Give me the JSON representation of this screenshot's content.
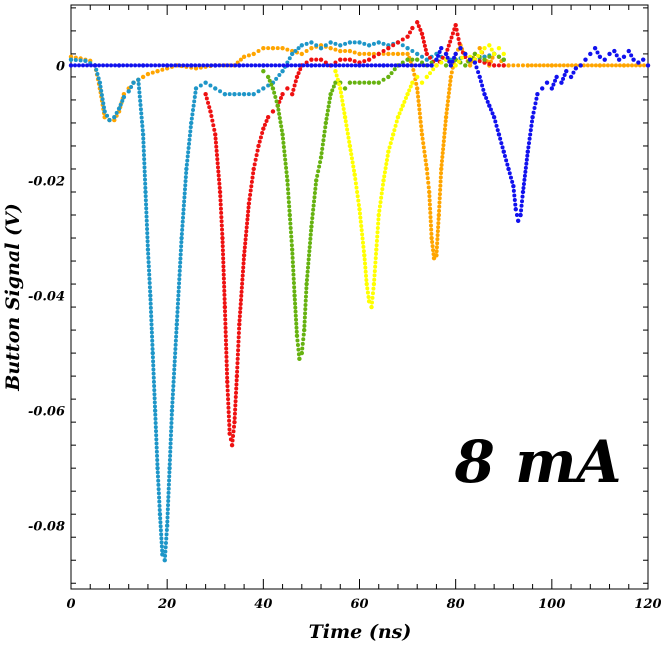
{
  "chart_data": {
    "type": "scatter",
    "xlabel": "Time (ns)",
    "ylabel": "Button Signal (V)",
    "annotation": "8 mA",
    "xlim": [
      0,
      120
    ],
    "ylim": [
      -0.091,
      0.0105
    ],
    "x_ticks": [
      0,
      20,
      40,
      60,
      80,
      100,
      120
    ],
    "x_tick_labels": [
      "0",
      "20",
      "40",
      "60",
      "80",
      "100",
      "120"
    ],
    "y_ticks": [
      0,
      -0.02,
      -0.04,
      -0.06,
      -0.08
    ],
    "y_tick_labels": [
      "0",
      "-0.02",
      "-0.04",
      "-0.06",
      "-0.08"
    ],
    "grid": false,
    "series": [
      {
        "color": "#ffa500",
        "points": [
          [
            0,
            0.0015
          ],
          [
            2,
            0.0012
          ],
          [
            4,
            0.0008
          ],
          [
            5,
            0
          ],
          [
            6,
            -0.004
          ],
          [
            7,
            -0.009
          ],
          [
            8,
            -0.0095
          ],
          [
            9,
            -0.0095
          ],
          [
            10,
            -0.008
          ],
          [
            11,
            -0.005
          ],
          [
            12,
            -0.004
          ],
          [
            13,
            -0.003
          ],
          [
            14,
            -0.0025
          ],
          [
            15,
            -0.002
          ],
          [
            16,
            -0.0015
          ],
          [
            18,
            -0.001
          ],
          [
            20,
            -0.0005
          ],
          [
            22,
            0
          ],
          [
            26,
            -0.0005
          ],
          [
            30,
            0
          ],
          [
            34,
            0
          ],
          [
            36,
            0.0015
          ],
          [
            38,
            0.002
          ],
          [
            40,
            0.003
          ],
          [
            42,
            0.003
          ],
          [
            44,
            0.003
          ],
          [
            46,
            0.0025
          ],
          [
            48,
            0.002
          ],
          [
            50,
            0.003
          ],
          [
            52,
            0.0035
          ],
          [
            54,
            0.003
          ],
          [
            56,
            0.0025
          ],
          [
            58,
            0.0025
          ],
          [
            60,
            0.002
          ],
          [
            62,
            0.002
          ],
          [
            64,
            0.002
          ],
          [
            66,
            0.002
          ],
          [
            68,
            0.002
          ],
          [
            70,
            0.002
          ],
          [
            71,
            0
          ],
          [
            72,
            -0.004
          ],
          [
            73,
            -0.012
          ],
          [
            74,
            -0.018
          ],
          [
            74.5,
            -0.022
          ],
          [
            75,
            -0.03
          ],
          [
            75.5,
            -0.0335
          ],
          [
            76,
            -0.033
          ],
          [
            76.5,
            -0.026
          ],
          [
            77,
            -0.018
          ],
          [
            78,
            -0.009
          ],
          [
            79,
            -0.002
          ],
          [
            80,
            0.002
          ],
          [
            81,
            0.0035
          ],
          [
            82,
            0.0015
          ],
          [
            83,
            0
          ],
          [
            84,
            0.002
          ],
          [
            85,
            0.003
          ],
          [
            86,
            0.0015
          ],
          [
            87,
            0
          ],
          [
            88,
            0.002
          ],
          [
            89,
            0.0015
          ],
          [
            90,
            0
          ],
          [
            91,
            0
          ],
          [
            95,
            0
          ],
          [
            100,
            0
          ],
          [
            105,
            0
          ],
          [
            110,
            0
          ],
          [
            115,
            0
          ],
          [
            120,
            0
          ]
        ]
      },
      {
        "color": "#1e96c8",
        "points": [
          [
            0,
            0.001
          ],
          [
            3,
            0.0008
          ],
          [
            5,
            0
          ],
          [
            6,
            -0.003
          ],
          [
            7,
            -0.008
          ],
          [
            8,
            -0.0095
          ],
          [
            9,
            -0.009
          ],
          [
            10,
            -0.0075
          ],
          [
            11,
            -0.0055
          ],
          [
            12,
            -0.0045
          ],
          [
            13,
            -0.003
          ],
          [
            14,
            -0.0025
          ],
          [
            15,
            -0.012
          ],
          [
            15.5,
            -0.022
          ],
          [
            16,
            -0.032
          ],
          [
            16.5,
            -0.04
          ],
          [
            17,
            -0.05
          ],
          [
            17.5,
            -0.06
          ],
          [
            18,
            -0.07
          ],
          [
            18.5,
            -0.078
          ],
          [
            19,
            -0.085
          ],
          [
            19.5,
            -0.086
          ],
          [
            20,
            -0.08
          ],
          [
            20.5,
            -0.07
          ],
          [
            21,
            -0.06
          ],
          [
            22,
            -0.045
          ],
          [
            23,
            -0.03
          ],
          [
            24,
            -0.018
          ],
          [
            25,
            -0.01
          ],
          [
            26,
            -0.004
          ],
          [
            28,
            -0.003
          ],
          [
            30,
            -0.004
          ],
          [
            32,
            -0.005
          ],
          [
            34,
            -0.005
          ],
          [
            36,
            -0.005
          ],
          [
            38,
            -0.005
          ],
          [
            40,
            -0.004
          ],
          [
            42,
            -0.003
          ],
          [
            44,
            -0.001
          ],
          [
            46,
            0.002
          ],
          [
            48,
            0.0035
          ],
          [
            50,
            0.004
          ],
          [
            52,
            0.003
          ],
          [
            54,
            0.004
          ],
          [
            56,
            0.0035
          ],
          [
            58,
            0.004
          ],
          [
            60,
            0.004
          ],
          [
            62,
            0.0035
          ],
          [
            64,
            0.004
          ],
          [
            66,
            0.0035
          ],
          [
            68,
            0.004
          ],
          [
            70,
            0.003
          ],
          [
            72,
            0.002
          ],
          [
            74,
            0.001
          ],
          [
            76,
            0.002
          ],
          [
            78,
            0.001
          ],
          [
            80,
            0.001
          ],
          [
            82,
            0.0015
          ],
          [
            84,
            0.001
          ],
          [
            86,
            0.0015
          ],
          [
            88,
            0.002
          ],
          [
            90,
            0.001
          ]
        ]
      },
      {
        "color": "#ee1111",
        "points": [
          [
            28,
            -0.005
          ],
          [
            29,
            -0.008
          ],
          [
            30,
            -0.012
          ],
          [
            31,
            -0.022
          ],
          [
            31.5,
            -0.03
          ],
          [
            32,
            -0.042
          ],
          [
            32.5,
            -0.055
          ],
          [
            33,
            -0.064
          ],
          [
            33.5,
            -0.066
          ],
          [
            34,
            -0.062
          ],
          [
            34.5,
            -0.054
          ],
          [
            35,
            -0.045
          ],
          [
            36,
            -0.033
          ],
          [
            37,
            -0.024
          ],
          [
            38,
            -0.018
          ],
          [
            39,
            -0.014
          ],
          [
            40,
            -0.011
          ],
          [
            41,
            -0.009
          ],
          [
            42,
            -0.008
          ],
          [
            43,
            -0.007
          ],
          [
            44,
            -0.005
          ],
          [
            45,
            -0.004
          ],
          [
            46,
            -0.005
          ],
          [
            47,
            -0.002
          ],
          [
            48,
            0
          ],
          [
            50,
            0.001
          ],
          [
            52,
            0.001
          ],
          [
            54,
            0
          ],
          [
            56,
            0.001
          ],
          [
            58,
            0.001
          ],
          [
            60,
            0.0005
          ],
          [
            62,
            0.001
          ],
          [
            64,
            0.002
          ],
          [
            66,
            0.003
          ],
          [
            68,
            0.004
          ],
          [
            70,
            0.005
          ],
          [
            71,
            0.0065
          ],
          [
            72,
            0.0075
          ],
          [
            73,
            0.0055
          ],
          [
            74,
            0.002
          ],
          [
            76,
            0
          ],
          [
            78,
            0.002
          ],
          [
            80,
            0.007
          ],
          [
            81,
            0.003
          ],
          [
            82,
            0.0015
          ],
          [
            84,
            0.001
          ],
          [
            86,
            0.0005
          ],
          [
            88,
            0
          ],
          [
            90,
            0
          ]
        ]
      },
      {
        "color": "#66b210",
        "points": [
          [
            40,
            -0.001
          ],
          [
            41,
            -0.002
          ],
          [
            42,
            -0.004
          ],
          [
            43,
            -0.007
          ],
          [
            44,
            -0.012
          ],
          [
            45,
            -0.02
          ],
          [
            45.5,
            -0.026
          ],
          [
            46,
            -0.032
          ],
          [
            46.5,
            -0.04
          ],
          [
            47,
            -0.047
          ],
          [
            47.5,
            -0.051
          ],
          [
            48,
            -0.05
          ],
          [
            48.5,
            -0.046
          ],
          [
            49,
            -0.038
          ],
          [
            50,
            -0.028
          ],
          [
            51,
            -0.02
          ],
          [
            52,
            -0.016
          ],
          [
            53,
            -0.01
          ],
          [
            54,
            -0.005
          ],
          [
            55,
            -0.003
          ],
          [
            56,
            -0.003
          ],
          [
            57,
            -0.004
          ],
          [
            58,
            -0.003
          ],
          [
            60,
            -0.003
          ],
          [
            62,
            -0.003
          ],
          [
            64,
            -0.003
          ],
          [
            66,
            -0.002
          ],
          [
            68,
            0
          ],
          [
            70,
            0.001
          ],
          [
            72,
            0.001
          ],
          [
            74,
            0
          ],
          [
            76,
            0.001
          ],
          [
            78,
            0
          ],
          [
            80,
            0.001
          ],
          [
            82,
            0
          ],
          [
            84,
            0.002
          ],
          [
            86,
            0.001
          ],
          [
            88,
            0.002
          ],
          [
            90,
            0.001
          ]
        ]
      },
      {
        "color": "#ffff00",
        "points": [
          [
            55,
            -0.001
          ],
          [
            56,
            -0.004
          ],
          [
            57,
            -0.009
          ],
          [
            58,
            -0.014
          ],
          [
            59,
            -0.019
          ],
          [
            60,
            -0.025
          ],
          [
            61,
            -0.033
          ],
          [
            61.5,
            -0.038
          ],
          [
            62,
            -0.041
          ],
          [
            62.5,
            -0.042
          ],
          [
            63,
            -0.038
          ],
          [
            63.5,
            -0.032
          ],
          [
            64,
            -0.026
          ],
          [
            65,
            -0.02
          ],
          [
            66,
            -0.015
          ],
          [
            67,
            -0.012
          ],
          [
            68,
            -0.009
          ],
          [
            69,
            -0.007
          ],
          [
            70,
            -0.005
          ],
          [
            71,
            -0.003
          ],
          [
            72,
            -0.002
          ],
          [
            73,
            -0.003
          ],
          [
            74,
            -0.002
          ],
          [
            76,
            0
          ],
          [
            78,
            0.001
          ],
          [
            80,
            0
          ],
          [
            82,
            0.002
          ],
          [
            84,
            0.001
          ],
          [
            86,
            0.003
          ],
          [
            87,
            0.0035
          ],
          [
            88,
            0.002
          ],
          [
            89,
            0.003
          ],
          [
            90,
            0.002
          ]
        ]
      },
      {
        "color": "#1111ee",
        "points": [
          [
            0,
            0
          ],
          [
            5,
            0
          ],
          [
            10,
            0
          ],
          [
            15,
            0
          ],
          [
            20,
            0
          ],
          [
            25,
            0
          ],
          [
            30,
            0
          ],
          [
            35,
            0
          ],
          [
            40,
            0
          ],
          [
            45,
            0
          ],
          [
            50,
            0
          ],
          [
            55,
            0
          ],
          [
            60,
            0
          ],
          [
            65,
            0
          ],
          [
            70,
            0
          ],
          [
            75,
            0
          ],
          [
            76,
            0.001
          ],
          [
            77,
            0.003
          ],
          [
            78,
            0.002
          ],
          [
            79,
            0
          ],
          [
            80,
            0.002
          ],
          [
            81,
            0.003
          ],
          [
            82,
            0.002
          ],
          [
            83,
            0.001
          ],
          [
            84,
            0.0005
          ],
          [
            85,
            -0.002
          ],
          [
            86,
            -0.005
          ],
          [
            87,
            -0.007
          ],
          [
            88,
            -0.009
          ],
          [
            89,
            -0.012
          ],
          [
            90,
            -0.015
          ],
          [
            91,
            -0.018
          ],
          [
            92,
            -0.021
          ],
          [
            92.5,
            -0.025
          ],
          [
            93,
            -0.027
          ],
          [
            93.5,
            -0.026
          ],
          [
            94,
            -0.022
          ],
          [
            95,
            -0.015
          ],
          [
            96,
            -0.009
          ],
          [
            97,
            -0.005
          ],
          [
            98,
            -0.004
          ],
          [
            99,
            -0.003
          ],
          [
            100,
            -0.004
          ],
          [
            101,
            -0.002
          ],
          [
            102,
            -0.003
          ],
          [
            103,
            -0.001
          ],
          [
            104,
            -0.002
          ],
          [
            105,
            -0.0005
          ],
          [
            106,
            0
          ],
          [
            107,
            0.001
          ],
          [
            108,
            0.002
          ],
          [
            109,
            0.003
          ],
          [
            110,
            0.0015
          ],
          [
            111,
            0.001
          ],
          [
            112,
            0.002
          ],
          [
            113,
            0.0025
          ],
          [
            114,
            0.001
          ],
          [
            115,
            0.0015
          ],
          [
            116,
            0.0025
          ],
          [
            117,
            0.001
          ],
          [
            118,
            0.0005
          ],
          [
            119,
            0.001
          ],
          [
            120,
            0
          ]
        ]
      }
    ]
  }
}
